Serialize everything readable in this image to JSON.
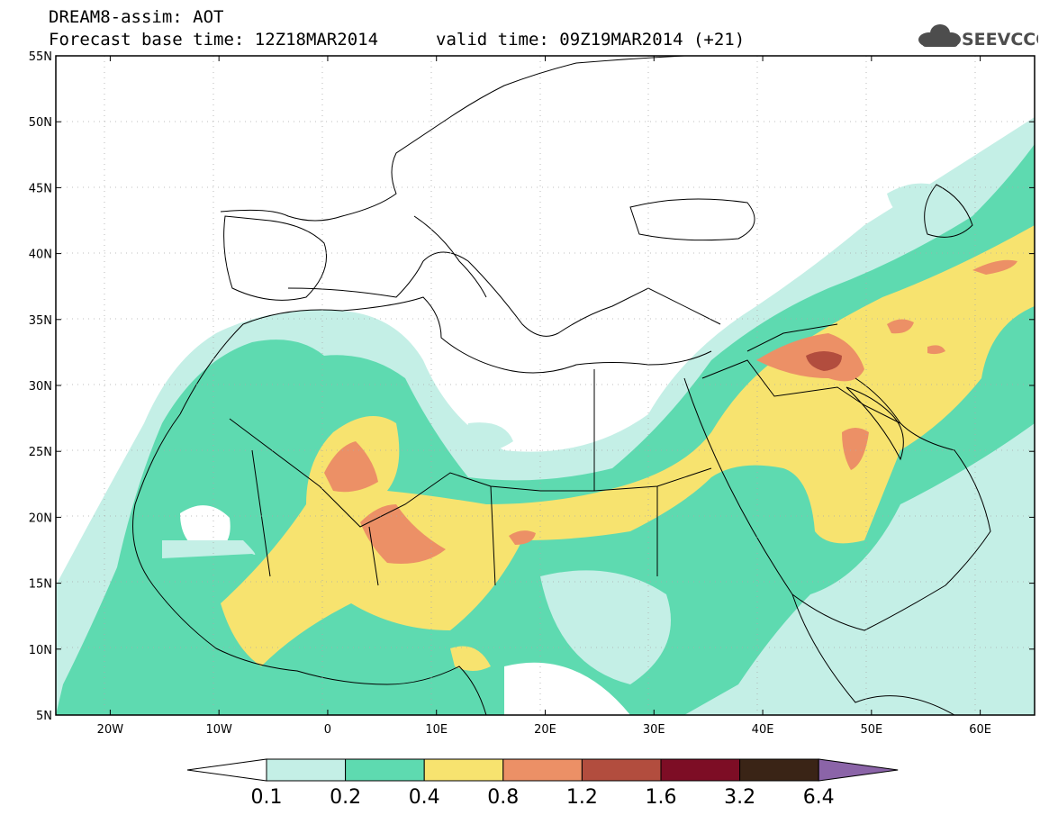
{
  "header": {
    "line1": "DREAM8-assim: AOT",
    "line2": "Forecast base time: 12Z18MAR2014",
    "line3": "valid time: 09Z19MAR2014 (+21)"
  },
  "logo": {
    "text": "SEEVCCC",
    "icon": "cloud-icon",
    "color": "#4d4d4d"
  },
  "map": {
    "lon_range": [
      -25,
      65
    ],
    "lat_range": [
      5,
      55
    ],
    "x_ticks": [
      "20W",
      "10W",
      "0",
      "10E",
      "20E",
      "30E",
      "40E",
      "50E",
      "60E"
    ],
    "y_ticks": [
      "5N",
      "10N",
      "15N",
      "20N",
      "25N",
      "30N",
      "35N",
      "40N",
      "45N",
      "50N",
      "55N"
    ]
  },
  "colorbar": {
    "labels": [
      "0.1",
      "0.2",
      "0.4",
      "0.8",
      "1.2",
      "1.6",
      "3.2",
      "6.4"
    ],
    "colors": [
      "#c4efe6",
      "#5edab0",
      "#f7e36f",
      "#ec9066",
      "#b24d3e",
      "#7d0d25",
      "#3a2416",
      "#8b64a8"
    ],
    "under_color": "#ffffff"
  }
}
